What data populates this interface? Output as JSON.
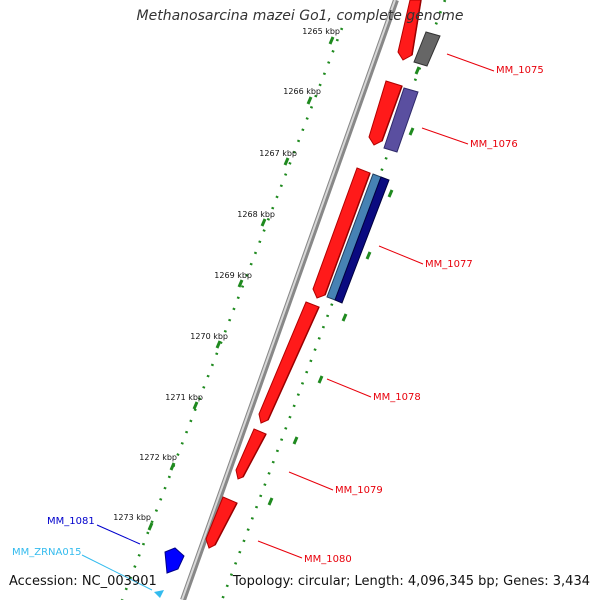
{
  "title": "Methanosarcina mazei Go1, complete genome",
  "footer": {
    "accession": "Accession: NC_003901",
    "topology": "Topology: circular; Length: 4,096,345 bp; Genes: 3,434"
  },
  "axis_labels": [
    "1265 kbp",
    "1266 kbp",
    "1267 kbp",
    "1268 kbp",
    "1269 kbp",
    "1270 kbp",
    "1271 kbp",
    "1272 kbp",
    "1273 kbp"
  ],
  "genes": [
    {
      "name": "MM_1075",
      "color": "#e8000b"
    },
    {
      "name": "MM_1076",
      "color": "#e8000b"
    },
    {
      "name": "MM_1077",
      "color": "#e8000b"
    },
    {
      "name": "MM_1078",
      "color": "#e8000b"
    },
    {
      "name": "MM_1079",
      "color": "#e8000b"
    },
    {
      "name": "MM_1080",
      "color": "#e8000b"
    },
    {
      "name": "MM_1081",
      "color": "#0000cc"
    },
    {
      "name": "MM_ZRNA015",
      "color": "#33bbee"
    }
  ],
  "colors": {
    "cds": "#ff1a1a",
    "backbone": "#777777",
    "dots": "#1f8a1f",
    "cog_grey": "#666666",
    "cog_purple": "#5a4fa0",
    "cog_steelblue": "#4682b4",
    "cog_navy": "#0a0a80"
  }
}
